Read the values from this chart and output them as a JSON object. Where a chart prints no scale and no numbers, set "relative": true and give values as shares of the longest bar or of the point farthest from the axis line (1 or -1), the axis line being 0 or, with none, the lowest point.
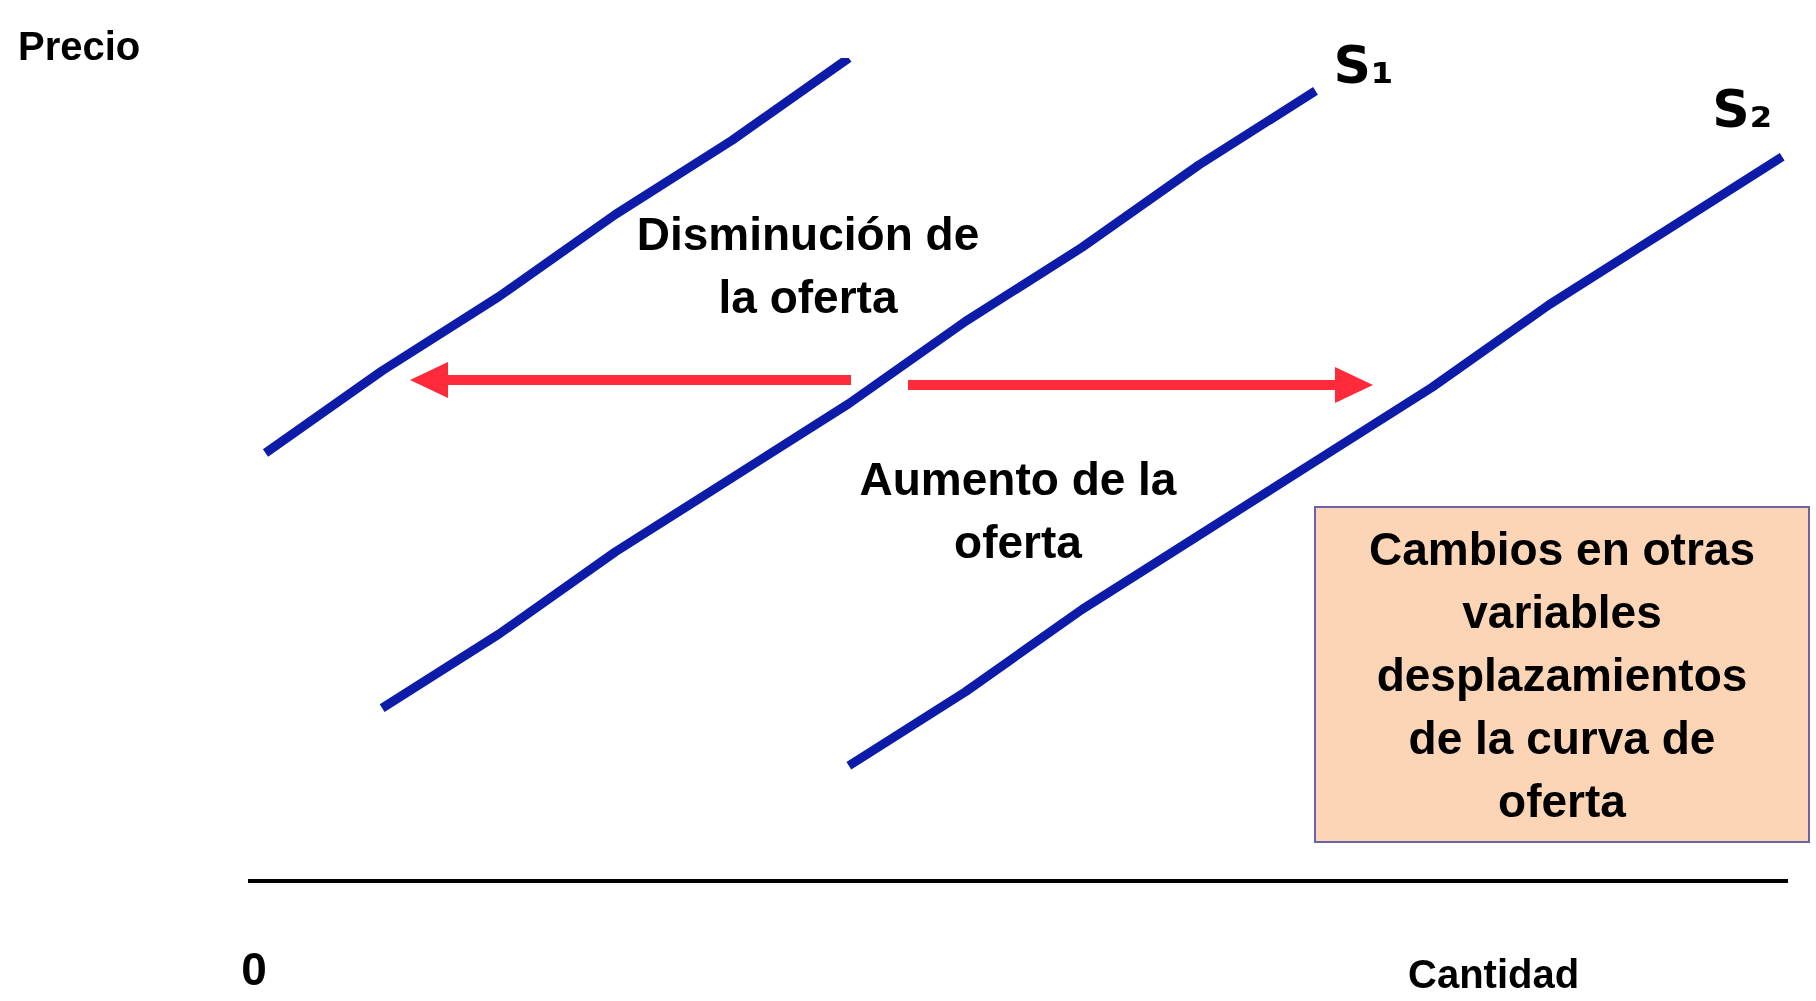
{
  "chart_data": {
    "type": "line",
    "relative": true,
    "ylabel": "Precio",
    "xlabel": "Cantidad",
    "marker": "none",
    "categories": [
      null,
      null,
      null,
      null,
      null,
      null,
      null,
      null,
      null,
      null,
      null,
      null,
      null,
      null
    ],
    "series": [
      {
        "color": "#0d1ca8",
        "values": [
          0.52,
          0.62,
          0.71,
          0.81,
          0.9,
          1.0,
          null,
          null,
          null,
          null,
          null,
          null,
          null,
          null
        ]
      },
      {
        "name": "S₁",
        "color": "#0d1ca8",
        "values": [
          null,
          0.21,
          0.3,
          0.4,
          0.49,
          0.58,
          0.68,
          0.77,
          0.87,
          0.96,
          null,
          null,
          null,
          null
        ]
      },
      {
        "name": "S₂",
        "color": "#0d1ca8",
        "values": [
          null,
          null,
          null,
          null,
          null,
          0.14,
          0.23,
          0.33,
          0.42,
          0.51,
          0.6,
          0.7,
          0.79,
          0.88
        ]
      }
    ],
    "annotations": [
      "0",
      "Disminución de la oferta",
      "Aumento de la oferta",
      "Cambios en otras variables desplazamientos de la curva de oferta"
    ]
  }
}
